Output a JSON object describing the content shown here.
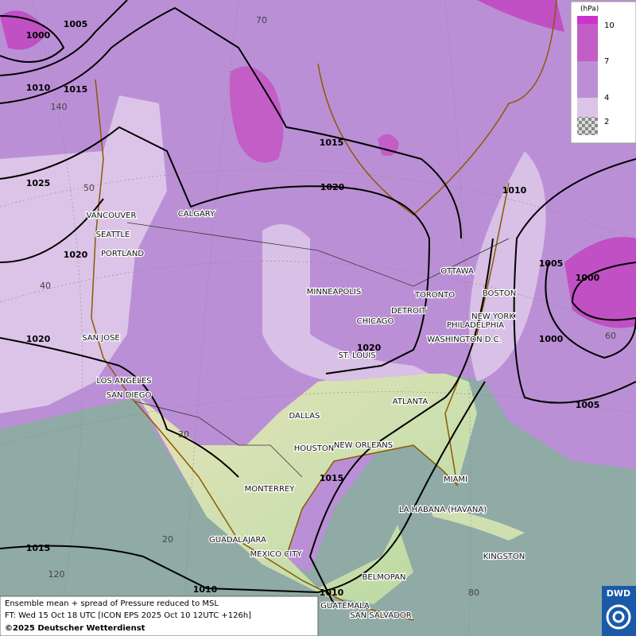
{
  "legend": {
    "unit": "(hPa)",
    "levels": [
      10,
      7,
      4,
      2
    ]
  },
  "isobar_labels": [
    "1000",
    "1005",
    "1010",
    "1015",
    "1015",
    "1020",
    "1025",
    "1020",
    "1020",
    "1020",
    "1010",
    "1005",
    "1000",
    "1000",
    "1005",
    "1015",
    "1015",
    "1010",
    "1010"
  ],
  "graticule_labels": [
    "70",
    "140",
    "50",
    "40",
    "30",
    "20",
    "120",
    "80",
    "60"
  ],
  "cities": [
    "VANCOUVER",
    "CALGARY",
    "SEATTLE",
    "PORTLAND",
    "SAN JOSE",
    "LOS ANGELES",
    "SAN DIEGO",
    "MINNEAPOLIS",
    "CHICAGO",
    "DETROIT",
    "TORONTO",
    "OTTAWA",
    "BOSTON",
    "NEW YORK",
    "PHILADELPHIA",
    "WASHINGTON D.C.",
    "ST. LOUIS",
    "DALLAS",
    "ATLANTA",
    "HOUSTON",
    "NEW ORLEANS",
    "MIAMI",
    "MONTERREY",
    "LA HABANA (HAVANA)",
    "GUADALAJARA",
    "MEXICO CITY",
    "KINGSTON",
    "BELMOPAN",
    "GUATEMALA",
    "SAN SALVADOR"
  ],
  "caption": {
    "line1": "Ensemble mean + spread of Pressure reduced to MSL",
    "line2": "FT: Wed 15 Oct 18 UTC [ICON EPS 2025 Oct 10 12UTC +126h]",
    "line3": "©2025 Deutscher Wetterdienst"
  },
  "logo": "DWD"
}
